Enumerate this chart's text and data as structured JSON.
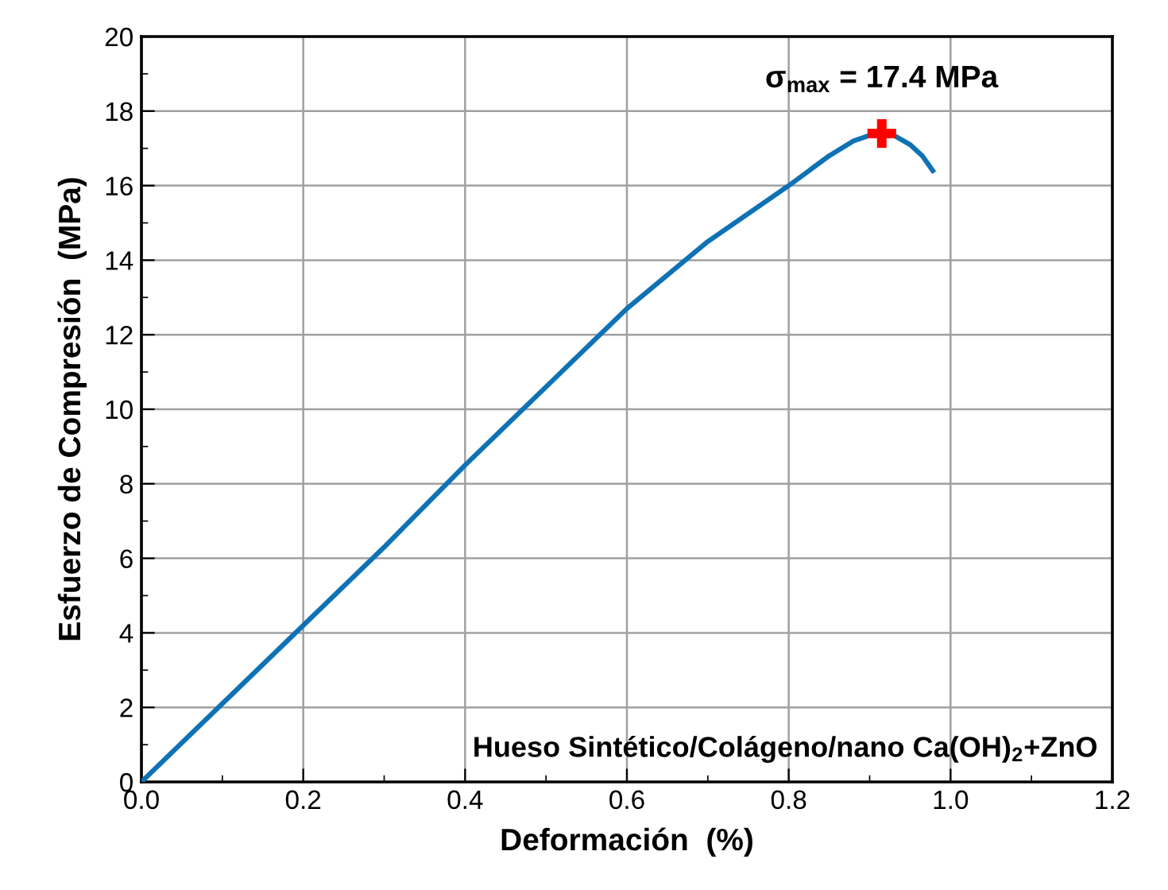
{
  "chart_data": {
    "type": "line",
    "xlabel": "Deformación  (%)",
    "ylabel": "Esfuerzo de Compresión  (MPa)",
    "xlim": [
      0,
      1.2
    ],
    "ylim": [
      0,
      20
    ],
    "xticks": [
      {
        "value": 0,
        "label": "0.0"
      },
      {
        "value": 0.2,
        "label": "0.2"
      },
      {
        "value": 0.4,
        "label": "0.4"
      },
      {
        "value": 0.6,
        "label": "0.6"
      },
      {
        "value": 0.8,
        "label": "0.8"
      },
      {
        "value": 1.0,
        "label": "1.0"
      },
      {
        "value": 1.2,
        "label": "1.2"
      }
    ],
    "yticks": [
      0,
      2,
      4,
      6,
      8,
      10,
      12,
      14,
      16,
      18,
      20
    ],
    "grid": true,
    "marker": "none",
    "line_style": "solid",
    "series": [
      {
        "color": "#0e72b5",
        "x": [
          0,
          0.1,
          0.2,
          0.3,
          0.4,
          0.5,
          0.6,
          0.7,
          0.8,
          0.85,
          0.88,
          0.9,
          0.93,
          0.95,
          0.965,
          0.978
        ],
        "values": [
          0,
          2.1,
          4.2,
          6.3,
          8.5,
          10.6,
          12.7,
          14.5,
          16.0,
          16.8,
          17.2,
          17.35,
          17.35,
          17.1,
          16.8,
          16.4
        ]
      },
      {
        "type": "scatter",
        "color": "#ff0000",
        "marker": "cross",
        "x": [
          0.915
        ],
        "values": [
          17.4
        ]
      }
    ],
    "annotations": [
      {
        "text": "σ$_{max}$ = 17.4 MPa",
        "x": 0.915,
        "y": 17.4
      },
      "Hueso Sintético/Colágeno/nano Ca(OH)$_{2}$+ZnO"
    ]
  }
}
